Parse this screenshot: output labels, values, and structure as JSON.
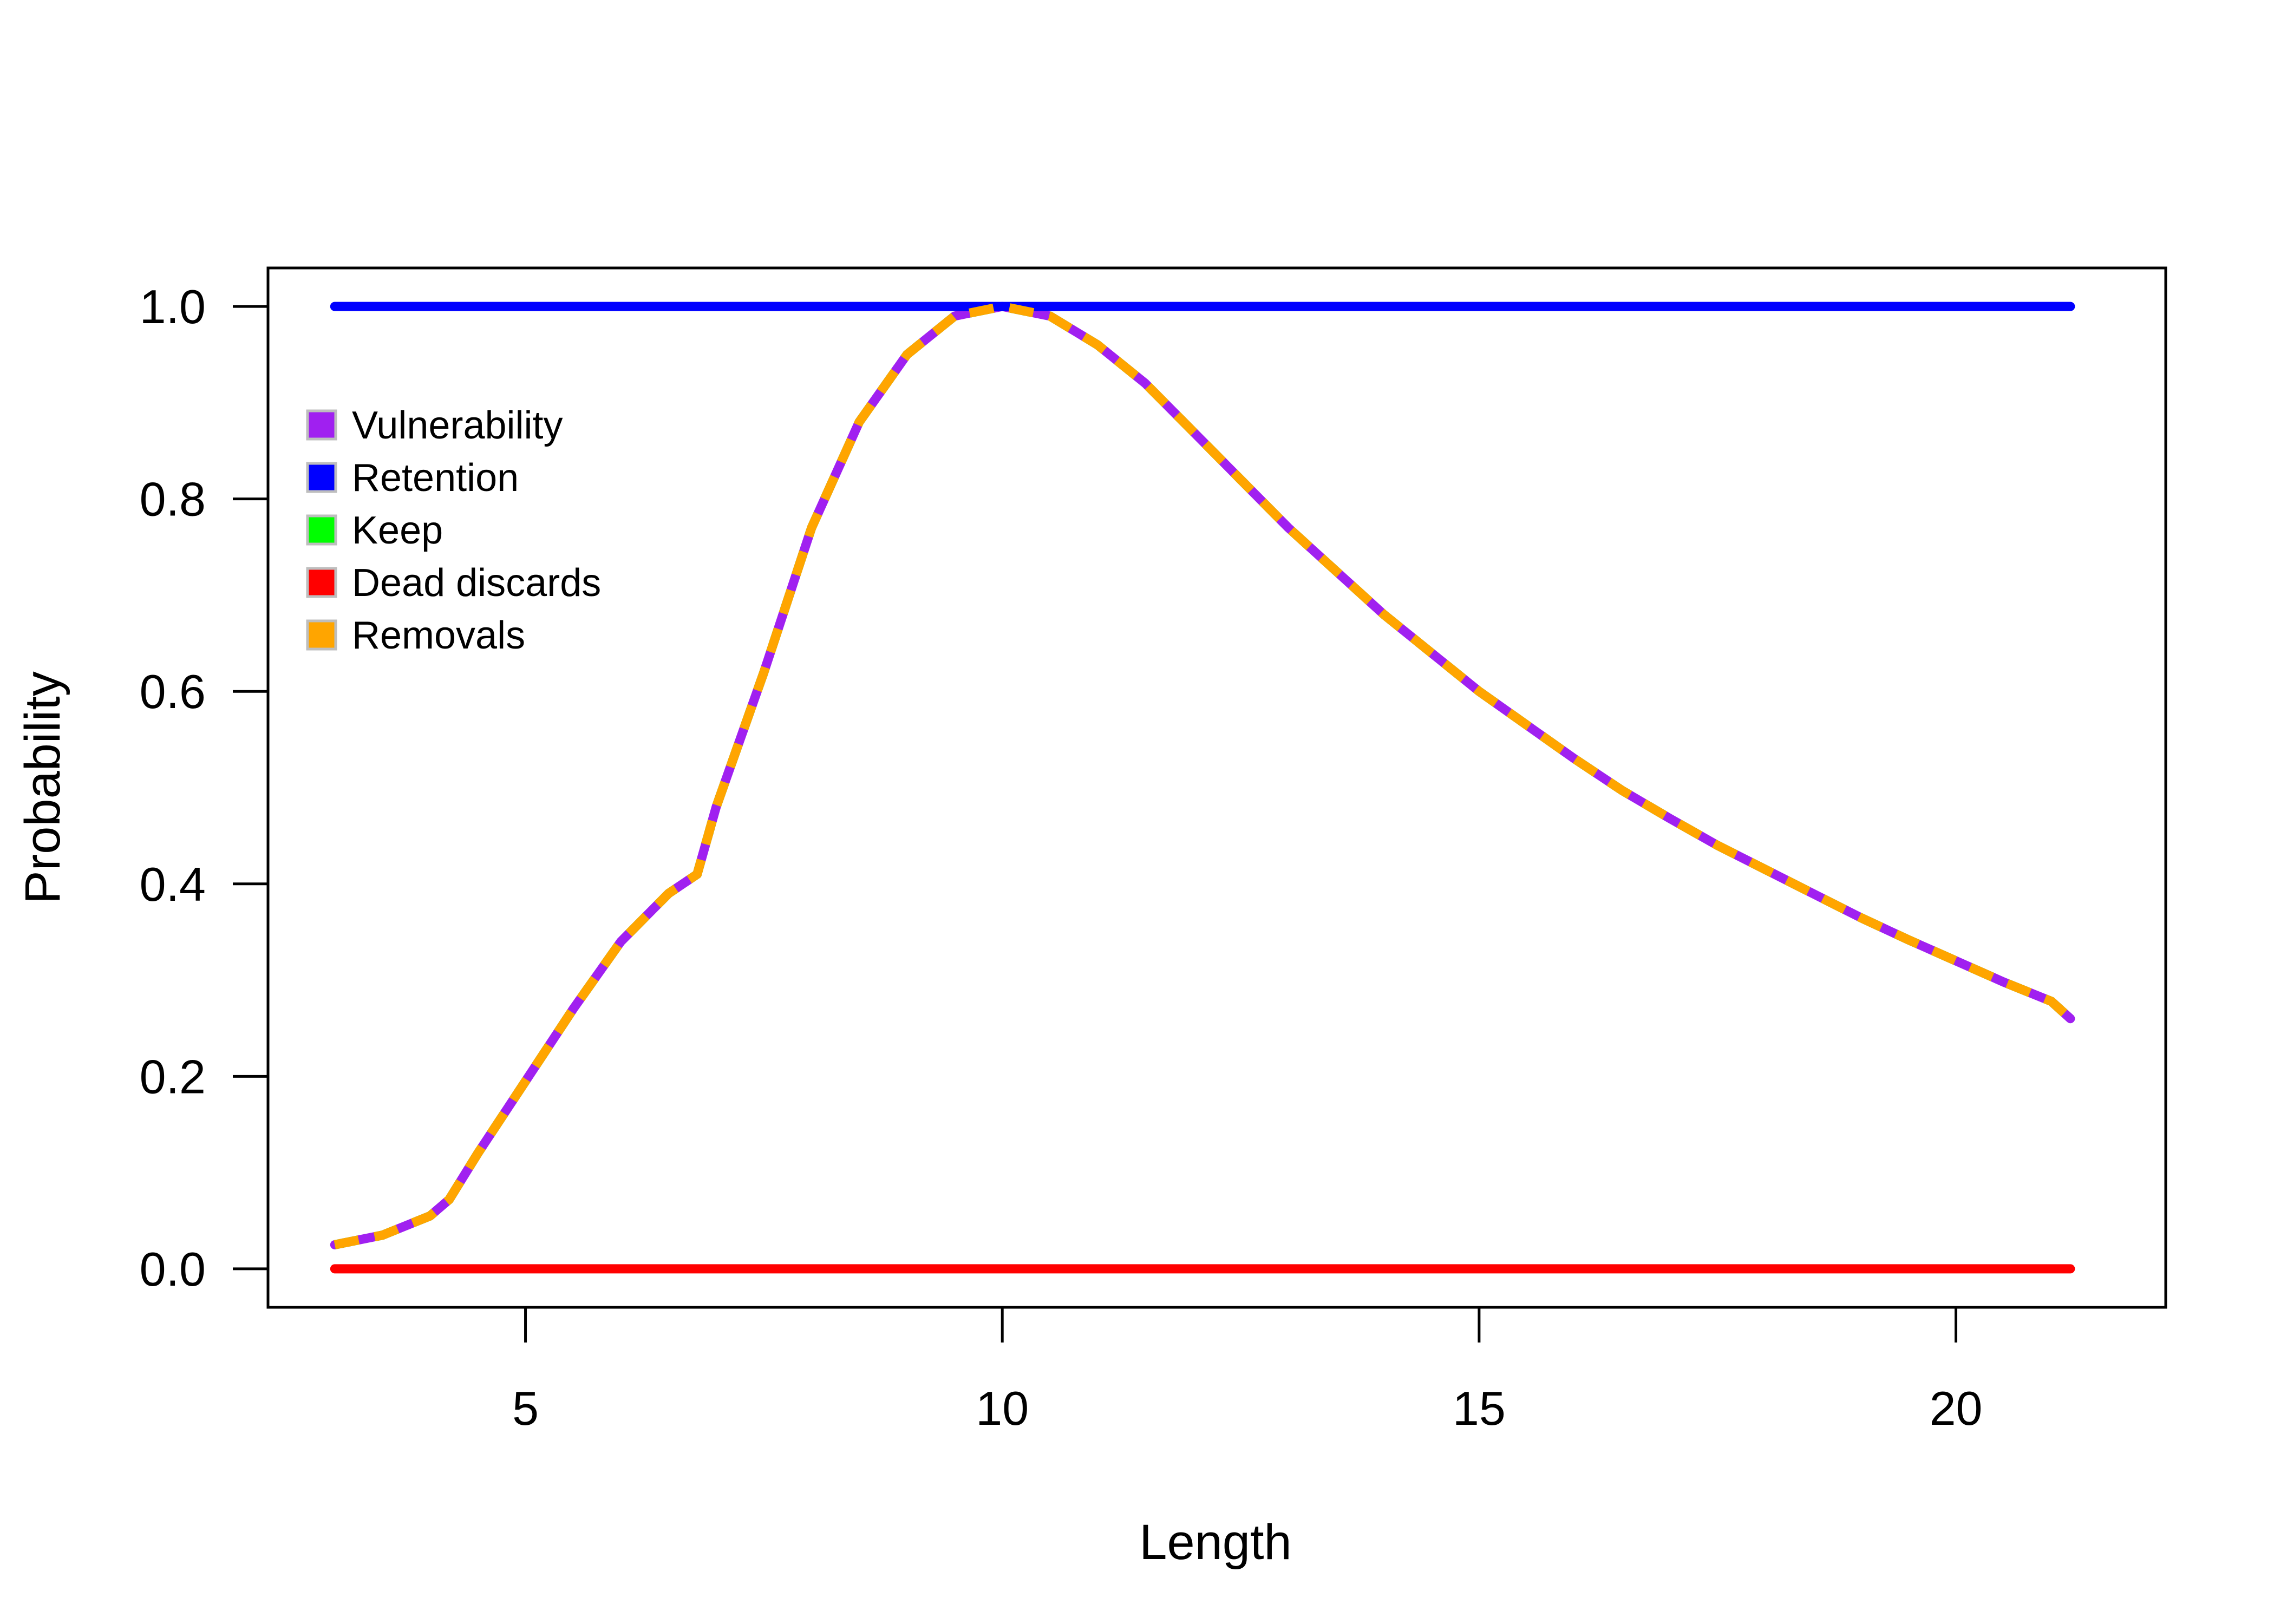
{
  "chart_data": {
    "type": "line",
    "title": "",
    "xlabel": "Length",
    "ylabel": "Probability",
    "xlim": [
      2.3,
      22.2
    ],
    "ylim": [
      -0.04,
      1.04
    ],
    "xticks": [
      5,
      10,
      15,
      20
    ],
    "yticks": [
      0.0,
      0.2,
      0.4,
      0.6,
      0.8,
      1.0
    ],
    "xtick_labels": [
      "5",
      "10",
      "15",
      "20"
    ],
    "ytick_labels": [
      "0.0",
      "0.2",
      "0.4",
      "0.6",
      "0.8",
      "1.0"
    ],
    "legend_position": "top-left",
    "x": [
      3.0,
      3.5,
      4.0,
      4.2,
      4.5,
      5.0,
      5.5,
      6.0,
      6.5,
      6.8,
      7.0,
      7.5,
      8.0,
      8.5,
      9.0,
      9.5,
      10.0,
      10.5,
      11.0,
      11.5,
      12.0,
      12.5,
      13.0,
      13.5,
      14.0,
      14.5,
      15.0,
      15.5,
      16.0,
      16.5,
      17.0,
      17.5,
      18.0,
      18.5,
      19.0,
      19.5,
      20.0,
      20.5,
      21.0,
      21.2
    ],
    "series": [
      {
        "name": "Vulnerability",
        "color": "#A020F0",
        "style": "solid",
        "values": [
          0.025,
          0.035,
          0.055,
          0.072,
          0.12,
          0.195,
          0.27,
          0.34,
          0.39,
          0.41,
          0.48,
          0.62,
          0.77,
          0.88,
          0.95,
          0.99,
          1.0,
          0.99,
          0.96,
          0.92,
          0.87,
          0.82,
          0.77,
          0.725,
          0.68,
          0.64,
          0.6,
          0.565,
          0.53,
          0.497,
          0.468,
          0.44,
          0.415,
          0.39,
          0.365,
          0.342,
          0.32,
          0.298,
          0.278,
          0.26
        ]
      },
      {
        "name": "Retention",
        "color": "#0000FF",
        "style": "solid",
        "values": [
          1,
          1,
          1,
          1,
          1,
          1,
          1,
          1,
          1,
          1,
          1,
          1,
          1,
          1,
          1,
          1,
          1,
          1,
          1,
          1,
          1,
          1,
          1,
          1,
          1,
          1,
          1,
          1,
          1,
          1,
          1,
          1,
          1,
          1,
          1,
          1,
          1,
          1,
          1,
          1
        ]
      },
      {
        "name": "Keep",
        "color": "#00FF00",
        "style": "dashed",
        "values": [
          0.025,
          0.035,
          0.055,
          0.072,
          0.12,
          0.195,
          0.27,
          0.34,
          0.39,
          0.41,
          0.48,
          0.62,
          0.77,
          0.88,
          0.95,
          0.99,
          1.0,
          0.99,
          0.96,
          0.92,
          0.87,
          0.82,
          0.77,
          0.725,
          0.68,
          0.64,
          0.6,
          0.565,
          0.53,
          0.497,
          0.468,
          0.44,
          0.415,
          0.39,
          0.365,
          0.342,
          0.32,
          0.298,
          0.278,
          0.26
        ]
      },
      {
        "name": "Dead discards",
        "color": "#FF0000",
        "style": "solid",
        "values": [
          0,
          0,
          0,
          0,
          0,
          0,
          0,
          0,
          0,
          0,
          0,
          0,
          0,
          0,
          0,
          0,
          0,
          0,
          0,
          0,
          0,
          0,
          0,
          0,
          0,
          0,
          0,
          0,
          0,
          0,
          0,
          0,
          0,
          0,
          0,
          0,
          0,
          0,
          0,
          0
        ]
      },
      {
        "name": "Removals",
        "color": "#FFA500",
        "style": "dashed",
        "values": [
          0.025,
          0.035,
          0.055,
          0.072,
          0.12,
          0.195,
          0.27,
          0.34,
          0.39,
          0.41,
          0.48,
          0.62,
          0.77,
          0.88,
          0.95,
          0.99,
          1.0,
          0.99,
          0.96,
          0.92,
          0.87,
          0.82,
          0.77,
          0.725,
          0.68,
          0.64,
          0.6,
          0.565,
          0.53,
          0.497,
          0.468,
          0.44,
          0.415,
          0.39,
          0.365,
          0.342,
          0.32,
          0.298,
          0.278,
          0.26
        ]
      }
    ]
  }
}
